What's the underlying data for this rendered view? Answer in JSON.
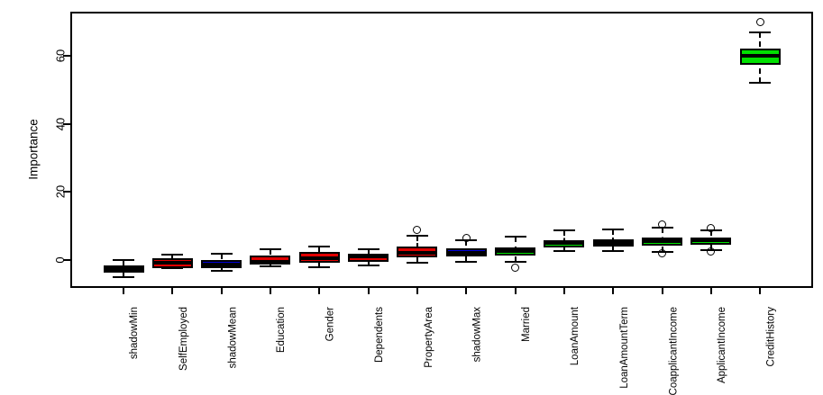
{
  "chart_data": {
    "type": "boxplot",
    "title": "",
    "xlabel": "",
    "ylabel": "Importance",
    "yticks": [
      0,
      20,
      40,
      60
    ],
    "ylim": [
      -8.4,
      73
    ],
    "grid": false,
    "legend": "none",
    "whisker_style": "dashed",
    "status_colors": {
      "shadow_attribute": "#0000d8",
      "rejected": "#e00000",
      "confirmed": "#00e000"
    },
    "categories": [
      "shadowMin",
      "SelfEmployed",
      "shadowMean",
      "Education",
      "Gender",
      "Dependents",
      "PropertyArea",
      "shadowMax",
      "Married",
      "LoanAmount",
      "LoanAmountTerm",
      "CoapplicantIncome",
      "ApplicantIncome",
      "CreditHistory"
    ],
    "series": [
      {
        "label": "shadowMin",
        "status": "shadow_attribute",
        "color": "#0000d8",
        "whisker_low": -5.3,
        "q1": -3.9,
        "median": -2.7,
        "q3": -1.6,
        "whisker_high": -0.1,
        "outliers": []
      },
      {
        "label": "SelfEmployed",
        "status": "rejected",
        "color": "#e00000",
        "whisker_low": -2.4,
        "q1": -2.4,
        "median": -0.8,
        "q3": 0.3,
        "whisker_high": 1.5,
        "outliers": []
      },
      {
        "label": "shadowMean",
        "status": "shadow_attribute",
        "color": "#0000d8",
        "whisker_low": -3.3,
        "q1": -2.4,
        "median": -1.4,
        "q3": 0.0,
        "whisker_high": 1.8,
        "outliers": []
      },
      {
        "label": "Education",
        "status": "rejected",
        "color": "#e00000",
        "whisker_low": -2.1,
        "q1": -1.5,
        "median": -0.6,
        "q3": 1.3,
        "whisker_high": 3.0,
        "outliers": []
      },
      {
        "label": "Gender",
        "status": "rejected",
        "color": "#e00000",
        "whisker_low": -2.2,
        "q1": -0.8,
        "median": 0.4,
        "q3": 2.3,
        "whisker_high": 3.8,
        "outliers": []
      },
      {
        "label": "Dependents",
        "status": "rejected",
        "color": "#e00000",
        "whisker_low": -1.7,
        "q1": -0.7,
        "median": 0.8,
        "q3": 1.6,
        "whisker_high": 3.1,
        "outliers": []
      },
      {
        "label": "PropertyArea",
        "status": "rejected",
        "color": "#e00000",
        "whisker_low": -1.0,
        "q1": 0.7,
        "median": 2.0,
        "q3": 3.9,
        "whisker_high": 7.1,
        "outliers": [
          8.8
        ]
      },
      {
        "label": "shadowMax",
        "status": "shadow_attribute",
        "color": "#0000d8",
        "whisker_low": -0.6,
        "q1": 0.8,
        "median": 1.9,
        "q3": 3.2,
        "whisker_high": 5.6,
        "outliers": [
          6.3
        ]
      },
      {
        "label": "Married",
        "status": "confirmed",
        "color": "#00e000",
        "whisker_low": -0.7,
        "q1": 1.2,
        "median": 2.4,
        "q3": 3.7,
        "whisker_high": 6.7,
        "outliers": [
          -2.3
        ]
      },
      {
        "label": "LoanAmount",
        "status": "confirmed",
        "color": "#00e000",
        "whisker_low": 2.6,
        "q1": 3.6,
        "median": 4.9,
        "q3": 5.8,
        "whisker_high": 8.7,
        "outliers": []
      },
      {
        "label": "LoanAmountTerm",
        "status": "confirmed",
        "color": "#00e000",
        "whisker_low": 2.5,
        "q1": 3.8,
        "median": 5.0,
        "q3": 6.0,
        "whisker_high": 8.9,
        "outliers": []
      },
      {
        "label": "CoapplicantIncome",
        "status": "confirmed",
        "color": "#00e000",
        "whisker_low": 2.3,
        "q1": 4.0,
        "median": 5.4,
        "q3": 6.4,
        "whisker_high": 9.3,
        "outliers": [
          10.4,
          1.8
        ]
      },
      {
        "label": "ApplicantIncome",
        "status": "confirmed",
        "color": "#00e000",
        "whisker_low": 2.9,
        "q1": 4.3,
        "median": 5.7,
        "q3": 6.5,
        "whisker_high": 8.7,
        "outliers": [
          9.4,
          2.4
        ]
      },
      {
        "label": "CreditHistory",
        "status": "confirmed",
        "color": "#00e000",
        "whisker_low": 52.0,
        "q1": 57.5,
        "median": 60.0,
        "q3": 62.2,
        "whisker_high": 67.0,
        "outliers": [
          70.1
        ]
      }
    ]
  }
}
